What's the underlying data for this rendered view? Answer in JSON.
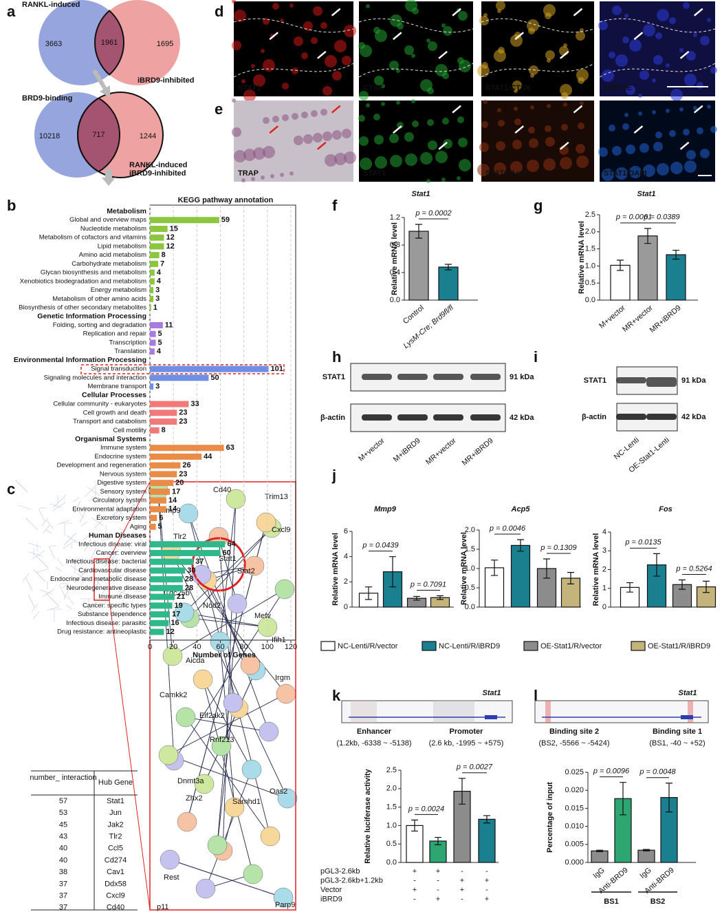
{
  "panel_labels": [
    "a",
    "b",
    "c",
    "d",
    "e",
    "f",
    "g",
    "h",
    "i",
    "j",
    "k",
    "l"
  ],
  "venn": [
    {
      "left": "RANKL-induced",
      "right": [
        "iBRD9-inhibited"
      ],
      "left_only": 3663,
      "overlap": 1961,
      "right_only": 1695
    },
    {
      "left": "BRD9-binding",
      "right": [
        "RANKL-induced",
        "iBRD9-inhibited"
      ],
      "left_only": 10218,
      "overlap": 717,
      "right_only": 1244
    }
  ],
  "images": {
    "d": [
      "STAT1",
      "CTSK",
      "STAT1/CTSK",
      "MERGE"
    ],
    "e": [
      "TRAP",
      "STAT1",
      "STAT1/Actin",
      "STAT1/DAPI"
    ]
  },
  "blots": [
    {
      "rows": [
        "STAT1",
        "β-actin"
      ],
      "sizes": [
        "91 kDa",
        "42 kDa"
      ],
      "lanes": [
        "M+vector",
        "M+iBRD9",
        "MR+vector",
        "MR+iBRD9"
      ]
    },
    {
      "rows": [
        "STAT1",
        "β-actin"
      ],
      "sizes": [
        "91 kDa",
        "42 kDa"
      ],
      "lanes": [
        "NC-Lenti",
        "OE-Stat1-Lenti"
      ]
    }
  ],
  "network": {
    "genes": [
      "Mmp9",
      "Tlr2",
      "Cd40",
      "Trim13",
      "Cxcl9",
      "Stat1",
      "Stat2",
      "Cdc25b",
      "Nod2",
      "Mefv",
      "Aicda",
      "Camkk2",
      "Eif2ak2",
      "Rnf213",
      "Dnmt3a",
      "Zhx2",
      "Rest",
      "Ifih1",
      "Irgm",
      "Oas2",
      "Samhd1",
      "Parp9",
      "p11"
    ],
    "table": {
      "header": [
        "number_ interaction",
        "Hub Gene"
      ],
      "rows": [
        [
          57,
          "Stat1"
        ],
        [
          53,
          "Jun"
        ],
        [
          45,
          "Jak2"
        ],
        [
          43,
          "Tlr2"
        ],
        [
          40,
          "Ccl5"
        ],
        [
          40,
          "Cd274"
        ],
        [
          38,
          "Cav1"
        ],
        [
          37,
          "Ddx58"
        ],
        [
          37,
          "Cxcl9"
        ],
        [
          37,
          "Cd40"
        ]
      ]
    }
  },
  "j_legend": [
    {
      "name": "NC-Lenti/R/vector",
      "color": "#ffffff"
    },
    {
      "name": "NC-Lenti/R/iBRD9",
      "color": "#1a7f8e"
    },
    {
      "name": "OE-Stat1/R/vector",
      "color": "#8c8c8c"
    },
    {
      "name": "OE-Stat1/R/iBRD9",
      "color": "#c4b47c"
    }
  ],
  "tracks": [
    {
      "gene": "Stat1",
      "left": "Enhancer",
      "left_sub": "(1.2kb, -6338 ~ -5138)",
      "right": "Promoter",
      "right_sub": "(2.6 kb, -1995 ~ +575)"
    },
    {
      "gene": "Stat1",
      "left": "Binding site 2",
      "left_sub": "(BS2, -5566 ~ -5424)",
      "right": "Binding site 1",
      "right_sub": "(BS1, -40 ~ +52)"
    }
  ],
  "luciferase_design": {
    "rows": [
      "pGL3-2.6kb",
      "pGL3-2.6kb+1.2kb",
      "Vector",
      "iBRD9"
    ],
    "signs": [
      [
        "+",
        "+",
        "-",
        "-"
      ],
      [
        "-",
        "-",
        "+",
        "+"
      ],
      [
        "+",
        "-",
        "+",
        "-"
      ],
      [
        "-",
        "+",
        "-",
        "+"
      ]
    ]
  },
  "chip_groups": [
    "BS1",
    "BS2"
  ],
  "chart_data": [
    {
      "type": "hbar",
      "title": "KEGG pathway annotation",
      "xlabel": "Number of Genes",
      "xlim": [
        0,
        120
      ],
      "xticks": [
        0,
        20,
        40,
        60,
        80,
        100,
        120
      ],
      "grid": true,
      "groups": [
        {
          "name": "Metabolism",
          "color": "#8cc63f",
          "categories": [
            "Global and overview maps",
            "Nucleotide metabolism",
            "Metabolism of cofactors and vitamins",
            "Lipid metabolism",
            "Amino acid metabolism",
            "Carbohydrate metabolism",
            "Glycan biosynthesis and metabolism",
            "Xenobiotics biodegradation and metabolism",
            "Energy metabolism",
            "Metabolism of other amino acids",
            "Biosynthesis of other secondary metabolites"
          ],
          "values": [
            59,
            15,
            12,
            12,
            8,
            7,
            4,
            4,
            3,
            3,
            1
          ]
        },
        {
          "name": "Genetic Information Processing",
          "color": "#a77be0",
          "categories": [
            "Folding, sorting and degradation",
            "Replication and repair",
            "Transcription",
            "Translation"
          ],
          "values": [
            11,
            5,
            5,
            4
          ]
        },
        {
          "name": "Environmental Information Processing",
          "color": "#6e8fe3",
          "categories": [
            "Signal transduction",
            "Signaling molecules and interaction",
            "Membrane transport"
          ],
          "values": [
            101,
            50,
            3
          ]
        },
        {
          "name": "Cellular Processes",
          "color": "#f07a7a",
          "categories": [
            "Cellular community - eukaryotes",
            "Cell growth and death",
            "Transport and catabolism",
            "Cell motility"
          ],
          "values": [
            33,
            23,
            23,
            8
          ]
        },
        {
          "name": "Organismal Systems",
          "color": "#e88c48",
          "categories": [
            "Immune system",
            "Endocrine system",
            "Development and regeneration",
            "Nervous system",
            "Digestive system",
            "Sensory system",
            "Circulatory system",
            "Environmental adaptation",
            "Excretory system",
            "Aging"
          ],
          "values": [
            63,
            44,
            26,
            23,
            20,
            17,
            14,
            14,
            6,
            5
          ]
        },
        {
          "name": "Human Diseases",
          "color": "#2fb889",
          "categories": [
            "Infectious disease: viral",
            "Cancer: overview",
            "Infectious disease: bacterial",
            "Cardiovascular disease",
            "Endocrine and metabolic disease",
            "Neurodegenerative disease",
            "Immune disease",
            "Cancer: specific types",
            "Substance dependence",
            "Infectious disease: parasitic",
            "Drug resistance: antineoplastic"
          ],
          "values": [
            64,
            60,
            37,
            30,
            28,
            28,
            21,
            19,
            17,
            16,
            12
          ]
        }
      ]
    },
    {
      "type": "bar",
      "title": "Stat1",
      "ylabel": "Relative mRNA level",
      "categories": [
        "Control",
        "LysM-Cre; Brd9fl/fl"
      ],
      "values": [
        1.0,
        0.48
      ],
      "errors": [
        0.1,
        0.04
      ],
      "colors": [
        "#9a9a9a",
        "#1a7f8e"
      ],
      "ylim": [
        0,
        1.2
      ],
      "yticks": [
        {
          "value": 0,
          "label": "0.0"
        },
        {
          "value": 0.4,
          "label": "0.4"
        },
        {
          "value": 0.8,
          "label": "0.8"
        },
        {
          "value": 1.2,
          "label": "1.2"
        }
      ],
      "annotations": [
        "p = 0.0002"
      ]
    },
    {
      "type": "bar",
      "title": "Stat1",
      "ylabel": "Relative mRNA level",
      "categories": [
        "M+vector",
        "MR+vector",
        "MR+iBRD9"
      ],
      "values": [
        1.02,
        1.88,
        1.33
      ],
      "errors": [
        0.15,
        0.22,
        0.13
      ],
      "colors": [
        "#ffffff",
        "#9a9a9a",
        "#1a7f8e"
      ],
      "ylim": [
        0,
        2.5
      ],
      "yticks": [
        {
          "value": 0,
          "label": "0.0"
        },
        {
          "value": 0.5,
          "label": "0.5"
        },
        {
          "value": 1,
          "label": "1.0"
        },
        {
          "value": 1.5,
          "label": "1.5"
        },
        {
          "value": 2,
          "label": "2.0"
        },
        {
          "value": 2.5,
          "label": "2.5"
        }
      ],
      "annotations": [
        "p = 0.0061",
        "p = 0.0389"
      ]
    },
    {
      "type": "bar",
      "title": "Mmp9",
      "ylabel": "Relative mRNA level",
      "values": [
        1.1,
        2.8,
        0.7,
        0.75
      ],
      "errors": [
        0.5,
        1.2,
        0.15,
        0.15
      ],
      "ylim": [
        0,
        6
      ],
      "yticks": [
        0,
        2,
        4,
        6
      ],
      "annotations": [
        "p = 0.0439",
        "p = 0.7091"
      ]
    },
    {
      "type": "bar",
      "title": "Acp5",
      "ylabel": "Relative mRNA level",
      "values": [
        1.02,
        1.6,
        1.0,
        0.75
      ],
      "errors": [
        0.2,
        0.15,
        0.25,
        0.15
      ],
      "ylim": [
        0,
        2
      ],
      "yticks": [
        {
          "value": 0,
          "label": "0.0"
        },
        {
          "value": 0.5,
          "label": "0.5"
        },
        {
          "value": 1,
          "label": "1.0"
        },
        {
          "value": 1.5,
          "label": "1.5"
        },
        {
          "value": 2,
          "label": "2.0"
        }
      ],
      "annotations": [
        "p = 0.0046",
        "p = 0.1309"
      ]
    },
    {
      "type": "bar",
      "title": "Fos",
      "ylabel": "Relative mRNA level",
      "values": [
        1.05,
        2.25,
        1.2,
        1.08
      ],
      "errors": [
        0.25,
        0.6,
        0.25,
        0.3
      ],
      "ylim": [
        0,
        4
      ],
      "yticks": [
        0,
        1,
        2,
        3,
        4
      ],
      "annotations": [
        "p = 0.0135",
        "p = 0.5264"
      ]
    },
    {
      "type": "bar",
      "ylabel": "Relative luciferase activity",
      "values": [
        1.0,
        0.58,
        1.93,
        1.17
      ],
      "errors": [
        0.15,
        0.1,
        0.35,
        0.1
      ],
      "colors": [
        "#ffffff",
        "#2ea672",
        "#8c8c8c",
        "#1a7f8e"
      ],
      "ylim": [
        0,
        2.5
      ],
      "yticks": [
        {
          "value": 0,
          "label": "0.0"
        },
        {
          "value": 0.5,
          "label": "0.5"
        },
        {
          "value": 1,
          "label": "1.0"
        },
        {
          "value": 1.5,
          "label": "1.5"
        },
        {
          "value": 2,
          "label": "2.0"
        },
        {
          "value": 2.5,
          "label": "2.5"
        }
      ],
      "annotations": [
        "p = 0.0024",
        "p = 0.0027"
      ]
    },
    {
      "type": "bar",
      "ylabel": "Percentage of input",
      "categories": [
        "IgG",
        "Anti-BRD9",
        "IgG",
        "Anti-BRD9"
      ],
      "values": [
        0.0032,
        0.0177,
        0.0034,
        0.018
      ],
      "errors": [
        0.0002,
        0.0045,
        0.0002,
        0.004
      ],
      "colors": [
        "#8c8c8c",
        "#2ea672",
        "#8c8c8c",
        "#1a7f8e"
      ],
      "ylim": [
        0,
        0.025
      ],
      "yticks": [
        {
          "value": 0,
          "label": "0.000"
        },
        {
          "value": 0.005,
          "label": "0.005"
        },
        {
          "value": 0.01,
          "label": "0.010"
        },
        {
          "value": 0.015,
          "label": "0.015"
        },
        {
          "value": 0.02,
          "label": "0.020"
        },
        {
          "value": 0.025,
          "label": "0.025"
        }
      ],
      "annotations": [
        "p = 0.0096",
        "p = 0.0048"
      ]
    }
  ]
}
